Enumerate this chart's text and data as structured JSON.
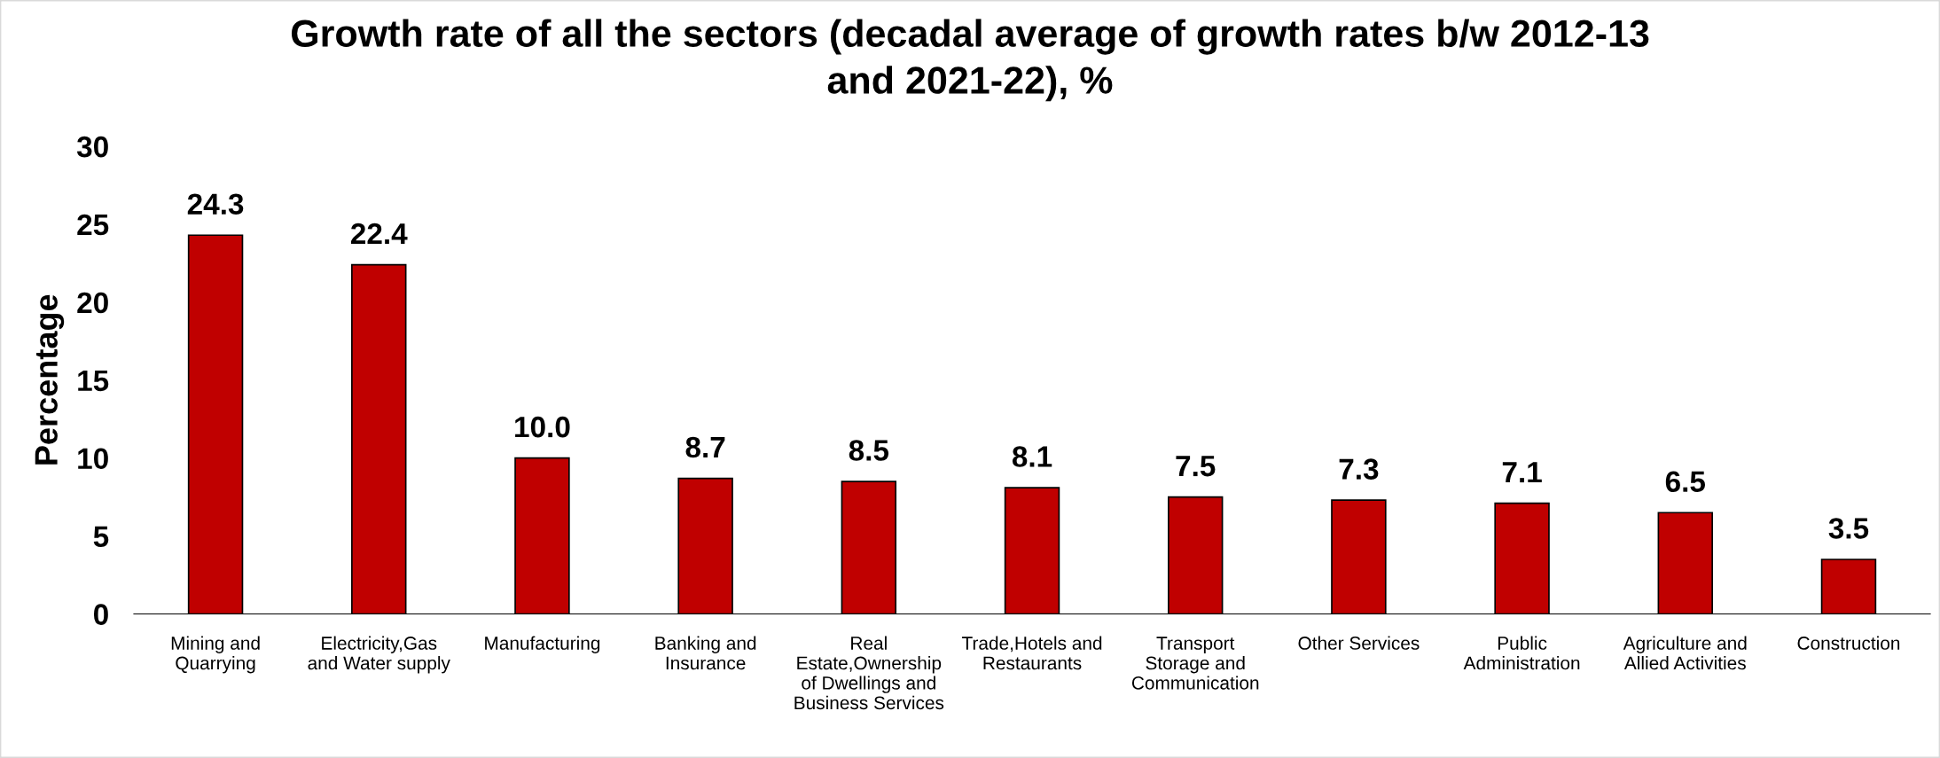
{
  "chart_data": {
    "type": "bar",
    "title": "Growth rate of all the sectors (decadal average of growth rates b/w 2012-13\nand 2021-22), %",
    "ylabel": "Percentage",
    "categories": [
      "Mining and\nQuarrying",
      "Electricity,Gas\nand Water supply",
      "Manufacturing",
      "Banking and\nInsurance",
      "Real\nEstate,Ownership\nof Dwellings and\nBusiness Services",
      "Trade,Hotels and\nRestaurants",
      "Transport\nStorage and\nCommunication",
      "Other Services",
      "Public\nAdministration",
      "Agriculture and\nAllied Activities",
      "Construction"
    ],
    "values": [
      24.3,
      22.4,
      10.0,
      8.7,
      8.5,
      8.1,
      7.5,
      7.3,
      7.1,
      6.5,
      3.5
    ],
    "value_labels": [
      "24.3",
      "22.4",
      "10.0",
      "8.7",
      "8.5",
      "8.1",
      "7.5",
      "7.3",
      "7.1",
      "6.5",
      "3.5"
    ],
    "color": "#c00000",
    "ylim": [
      0,
      30
    ],
    "yticks": [
      0,
      5,
      10,
      15,
      20,
      25,
      30
    ],
    "grid": false
  }
}
